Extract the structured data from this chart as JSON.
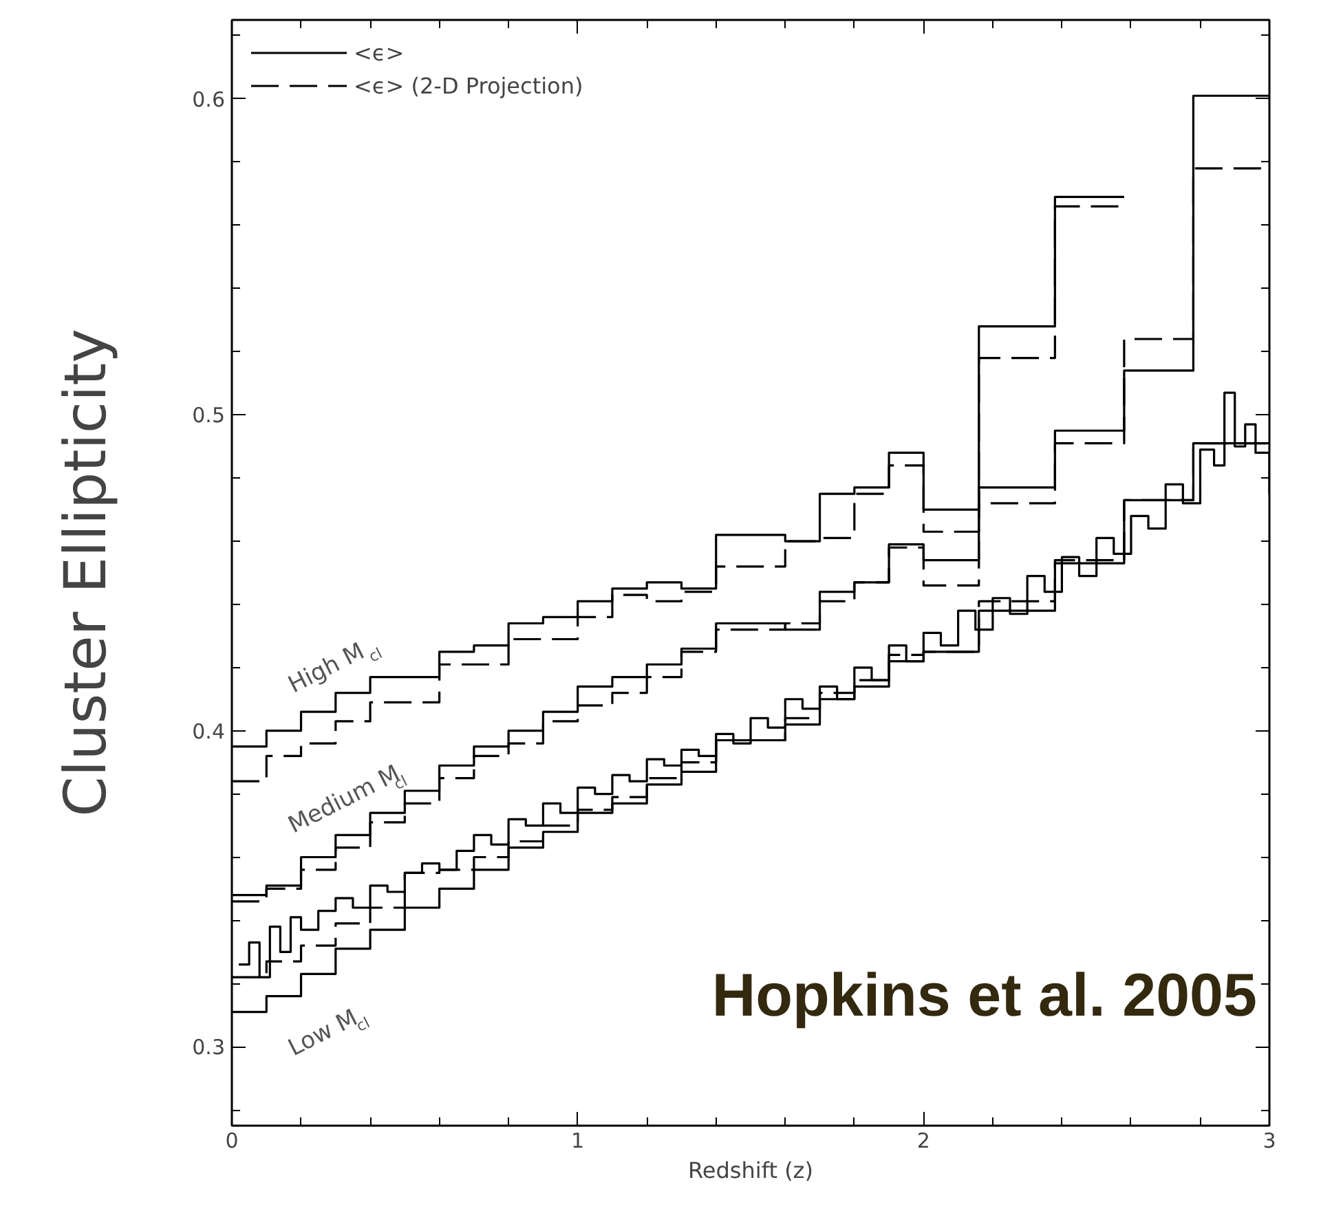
{
  "chart_data": {
    "type": "step",
    "xlabel": "Redshift (z)",
    "ylabel": "Cluster Ellipticity",
    "xlim": [
      0,
      3
    ],
    "ylim": [
      0.275,
      0.625
    ],
    "xticks": [
      0,
      {
        "value": 0.2,
        "label": null
      },
      {
        "value": 0.4,
        "label": null
      },
      {
        "value": 0.6,
        "label": null
      },
      {
        "value": 0.8,
        "label": null
      },
      1,
      {
        "value": 1.2,
        "label": null
      },
      {
        "value": 1.4,
        "label": null
      },
      {
        "value": 1.6,
        "label": null
      },
      {
        "value": 1.8,
        "label": null
      },
      2,
      {
        "value": 2.2,
        "label": null
      },
      {
        "value": 2.4,
        "label": null
      },
      {
        "value": 2.6,
        "label": null
      },
      {
        "value": 2.8,
        "label": null
      },
      3
    ],
    "yticks": [
      {
        "value": 0.28,
        "label": null
      },
      0.3,
      {
        "value": 0.32,
        "label": null
      },
      {
        "value": 0.34,
        "label": null
      },
      {
        "value": 0.36,
        "label": null
      },
      {
        "value": 0.38,
        "label": null
      },
      0.4,
      {
        "value": 0.42,
        "label": null
      },
      {
        "value": 0.44,
        "label": null
      },
      {
        "value": 0.46,
        "label": null
      },
      {
        "value": 0.48,
        "label": null
      },
      0.5,
      {
        "value": 0.52,
        "label": null
      },
      {
        "value": 0.54,
        "label": null
      },
      {
        "value": 0.56,
        "label": null
      },
      {
        "value": 0.58,
        "label": null
      },
      0.6,
      {
        "value": 0.62,
        "label": null
      }
    ],
    "grid": false,
    "legend": "top left",
    "series": [
      {
        "name": "<ϵ>",
        "color": "#000000",
        "line_style": "solid",
        "x": [
          0,
          0.1,
          0.2,
          0.3,
          0.4,
          0.5,
          0.6,
          0.7,
          0.8,
          0.9,
          1.0,
          1.1,
          1.2,
          1.3,
          1.4,
          1.6,
          1.7,
          1.8,
          1.9,
          2.0,
          2.16,
          2.38,
          2.58
        ],
        "values": [
          0.395,
          0.4,
          0.406,
          0.412,
          0.417,
          0.417,
          0.425,
          0.427,
          0.434,
          0.436,
          0.441,
          0.445,
          0.447,
          0.445,
          0.462,
          0.46,
          0.475,
          0.477,
          0.488,
          0.47,
          0.528,
          0.569,
          0.569
        ]
      },
      {
        "name": "<ϵ> (2-D Projection)",
        "color": "#000000",
        "line_style": "dashed",
        "x": [
          0,
          0.1,
          0.2,
          0.3,
          0.4,
          0.5,
          0.6,
          0.7,
          0.8,
          0.9,
          1.0,
          1.1,
          1.2,
          1.3,
          1.4,
          1.6,
          1.7,
          1.8,
          1.9,
          2.0,
          2.16,
          2.38,
          2.58
        ],
        "values": [
          0.384,
          0.392,
          0.396,
          0.403,
          0.409,
          0.409,
          0.421,
          0.421,
          0.429,
          0.429,
          0.436,
          0.443,
          0.441,
          0.444,
          0.452,
          0.46,
          0.461,
          0.475,
          0.484,
          0.463,
          0.518,
          0.566,
          0.566
        ]
      },
      {
        "color": "#000000",
        "line_style": "solid",
        "x": [
          0,
          0.1,
          0.2,
          0.3,
          0.4,
          0.5,
          0.6,
          0.7,
          0.8,
          0.9,
          1.0,
          1.1,
          1.2,
          1.3,
          1.4,
          1.6,
          1.7,
          1.8,
          1.9,
          2.0,
          2.16,
          2.38,
          2.58,
          2.78,
          3.0
        ],
        "values": [
          0.348,
          0.351,
          0.36,
          0.367,
          0.374,
          0.381,
          0.389,
          0.395,
          0.4,
          0.406,
          0.414,
          0.417,
          0.421,
          0.426,
          0.434,
          0.432,
          0.444,
          0.447,
          0.459,
          0.454,
          0.477,
          0.495,
          0.514,
          0.601,
          0.601
        ]
      },
      {
        "color": "#000000",
        "line_style": "dashed",
        "x": [
          0,
          0.1,
          0.2,
          0.3,
          0.4,
          0.5,
          0.6,
          0.7,
          0.8,
          0.9,
          1.0,
          1.1,
          1.2,
          1.3,
          1.4,
          1.6,
          1.7,
          1.8,
          1.9,
          2.0,
          2.16,
          2.38,
          2.58,
          2.78,
          3.0
        ],
        "values": [
          0.346,
          0.35,
          0.356,
          0.363,
          0.371,
          0.377,
          0.385,
          0.392,
          0.396,
          0.403,
          0.408,
          0.412,
          0.417,
          0.425,
          0.432,
          0.434,
          0.441,
          0.447,
          0.458,
          0.446,
          0.472,
          0.491,
          0.524,
          0.578,
          0.578
        ]
      },
      {
        "color": "#000000",
        "line_style": "solid",
        "x": [
          0,
          0.1,
          0.2,
          0.3,
          0.4,
          0.5,
          0.6,
          0.7,
          0.8,
          0.9,
          1.0,
          1.1,
          1.2,
          1.3,
          1.4,
          1.6,
          1.7,
          1.8,
          1.9,
          2.0,
          2.16,
          2.38,
          2.58,
          2.78,
          3.0
        ],
        "values": [
          0.311,
          0.316,
          0.323,
          0.331,
          0.337,
          0.344,
          0.35,
          0.356,
          0.363,
          0.368,
          0.374,
          0.377,
          0.383,
          0.387,
          0.397,
          0.402,
          0.41,
          0.414,
          0.422,
          0.425,
          0.438,
          0.453,
          0.473,
          0.491,
          0.491
        ]
      },
      {
        "color": "#000000",
        "line_style": "dashed",
        "x": [
          0,
          0.1,
          0.2,
          0.3,
          0.4,
          0.5,
          0.6,
          0.7,
          0.8,
          0.9,
          1.0,
          1.1,
          1.2,
          1.3,
          1.4,
          1.6,
          1.7,
          1.8,
          1.9,
          2.0,
          2.16,
          2.38,
          2.58,
          2.78,
          3.0
        ],
        "values": [
          0.322,
          0.327,
          0.332,
          0.339,
          0.344,
          0.355,
          0.356,
          0.36,
          0.365,
          0.37,
          0.375,
          0.379,
          0.385,
          0.39,
          0.397,
          0.404,
          0.412,
          0.416,
          0.424,
          0.425,
          0.441,
          0.454,
          0.473,
          0.491,
          0.491
        ]
      },
      {
        "color": "#000000",
        "line_style": "solid",
        "x": [
          0.02,
          0.05,
          0.08,
          0.11,
          0.14,
          0.17,
          0.2,
          0.25,
          0.3,
          0.35,
          0.4,
          0.45,
          0.5,
          0.55,
          0.6,
          0.65,
          0.7,
          0.75,
          0.8,
          0.85,
          0.9,
          0.95,
          1.0,
          1.05,
          1.1,
          1.15,
          1.2,
          1.25,
          1.3,
          1.35,
          1.4,
          1.45,
          1.5,
          1.55,
          1.6,
          1.65,
          1.7,
          1.75,
          1.8,
          1.85,
          1.9,
          1.95,
          2.0,
          2.05,
          2.1,
          2.15,
          2.2,
          2.25,
          2.3,
          2.35,
          2.4,
          2.45,
          2.5,
          2.55,
          2.6,
          2.65,
          2.7,
          2.75,
          2.8,
          2.84,
          2.87,
          2.9,
          2.93,
          2.96,
          3.0
        ],
        "values": [
          0.326,
          0.333,
          0.322,
          0.338,
          0.33,
          0.341,
          0.337,
          0.343,
          0.347,
          0.344,
          0.351,
          0.349,
          0.355,
          0.358,
          0.356,
          0.362,
          0.367,
          0.364,
          0.372,
          0.37,
          0.377,
          0.374,
          0.382,
          0.38,
          0.386,
          0.384,
          0.391,
          0.389,
          0.394,
          0.392,
          0.399,
          0.396,
          0.404,
          0.401,
          0.41,
          0.407,
          0.414,
          0.41,
          0.42,
          0.416,
          0.427,
          0.422,
          0.431,
          0.427,
          0.438,
          0.432,
          0.442,
          0.437,
          0.449,
          0.444,
          0.455,
          0.449,
          0.461,
          0.456,
          0.468,
          0.464,
          0.478,
          0.472,
          0.489,
          0.484,
          0.507,
          0.49,
          0.497,
          0.488,
          0.475
        ]
      }
    ],
    "annotations": [
      "High M$_{cl}$",
      "Medium M$_{cl}$",
      "Low M$_{cl}$",
      "Hopkins et al. 2005"
    ]
  }
}
